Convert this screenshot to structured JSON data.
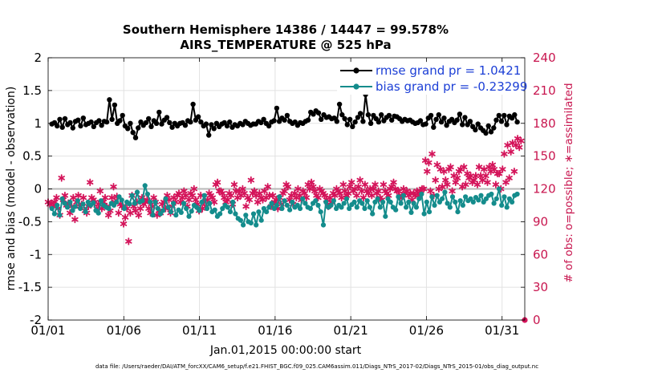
{
  "chart_data": {
    "type": "line",
    "title": "Southern Hemisphere 14386 / 14447 = 99.578%",
    "subtitle": "AIRS_TEMPERATURE @ 525 hPa",
    "xlabel": "Jan.01,2015 00:00:00 start",
    "ylabel": "rmse and bias (model - observation)",
    "ylabel_right": "# of obs: o=possible; ∗=assimilated",
    "xlim": [
      0,
      31.5
    ],
    "ylim": [
      -2,
      2
    ],
    "ylim_right": [
      0,
      240
    ],
    "x_ticks": [
      0,
      5,
      10,
      15,
      20,
      25,
      30
    ],
    "x_tick_labels": [
      "01/01",
      "01/06",
      "01/11",
      "01/16",
      "01/21",
      "01/26",
      "01/31"
    ],
    "y_ticks": [
      -2,
      -1.5,
      -1,
      -0.5,
      0,
      0.5,
      1,
      1.5,
      2
    ],
    "y_tick_labels": [
      "-2",
      "-1.5",
      "-1",
      "-0.5",
      "0",
      "0.5",
      "1",
      "1.5",
      "2"
    ],
    "y_ticks_right": [
      0,
      30,
      60,
      90,
      120,
      150,
      180,
      210,
      240
    ],
    "grid": true,
    "legend_position": "top-right",
    "colors": {
      "rmse": "#000000",
      "bias": "#148c8c",
      "obs": "#d4145a",
      "zero_line": "#b8b8b8",
      "grid": "#e2e2e2"
    },
    "series": [
      {
        "name": "rmse grand pr = 1.0421",
        "key": "rmse",
        "axis": "left",
        "values": [
          0.99,
          1.01,
          0.96,
          1.06,
          0.94,
          1.07,
          0.98,
          1.01,
          0.93,
          1.03,
          1.05,
          0.96,
          1.08,
          0.98,
          1.0,
          1.02,
          0.95,
          1.01,
          1.04,
          0.97,
          1.03,
          1.02,
          1.36,
          1.06,
          1.28,
          1.0,
          1.04,
          1.12,
          0.96,
          0.92,
          1.0,
          0.86,
          0.78,
          0.93,
          1.02,
          0.97,
          1.01,
          1.07,
          0.95,
          1.04,
          1.0,
          1.17,
          0.99,
          1.05,
          1.09,
          1.01,
          0.94,
          1.0,
          0.96,
          1.0,
          1.01,
          0.97,
          1.04,
          1.02,
          1.29,
          1.05,
          1.1,
          1.02,
          0.96,
          0.99,
          0.82,
          0.98,
          0.92,
          1.0,
          0.95,
          0.99,
          1.01,
          0.96,
          1.02,
          0.94,
          0.98,
          0.96,
          1.0,
          0.98,
          1.03,
          1.0,
          0.97,
          0.99,
          0.99,
          1.03,
          1.01,
          1.06,
          1.0,
          0.96,
          1.02,
          1.04,
          1.23,
          1.03,
          1.08,
          1.05,
          1.12,
          1.03,
          1.0,
          1.02,
          0.97,
          1.01,
          1.0,
          1.03,
          1.05,
          1.17,
          1.14,
          1.19,
          1.16,
          1.06,
          1.13,
          1.09,
          1.1,
          1.07,
          1.08,
          1.03,
          1.29,
          1.13,
          1.07,
          0.98,
          1.06,
          0.95,
          1.02,
          1.09,
          1.15,
          1.03,
          1.44,
          1.13,
          1.0,
          1.12,
          1.07,
          1.02,
          1.13,
          1.04,
          1.09,
          1.12,
          1.05,
          1.11,
          1.1,
          1.07,
          1.03,
          1.06,
          1.04,
          1.05,
          1.02,
          1.0,
          1.01,
          1.04,
          0.98,
          0.99,
          1.08,
          1.12,
          0.94,
          1.06,
          1.13,
          1.02,
          1.08,
          0.97,
          1.03,
          1.06,
          1.01,
          1.05,
          1.14,
          0.98,
          1.09,
          0.98,
          1.03,
          0.95,
          0.9,
          0.99,
          0.93,
          0.89,
          0.85,
          0.96,
          0.87,
          0.93,
          1.05,
          1.12,
          1.03,
          1.12,
          0.98,
          1.11,
          1.08,
          1.13,
          1.02
        ]
      },
      {
        "name": "bias grand pr = -0.23299",
        "key": "bias",
        "axis": "left",
        "values": [
          -0.3,
          -0.38,
          -0.25,
          -0.4,
          -0.15,
          -0.22,
          -0.28,
          -0.2,
          -0.33,
          -0.27,
          -0.18,
          -0.3,
          -0.23,
          -0.35,
          -0.2,
          -0.25,
          -0.21,
          -0.33,
          -0.37,
          -0.18,
          -0.25,
          -0.28,
          -0.3,
          -0.22,
          -0.25,
          -0.2,
          -0.12,
          -0.17,
          -0.3,
          -0.2,
          -0.23,
          -0.1,
          -0.22,
          -0.05,
          -0.2,
          -0.18,
          0.05,
          -0.08,
          -0.2,
          -0.4,
          -0.2,
          -0.3,
          -0.38,
          -0.33,
          -0.15,
          -0.28,
          -0.35,
          -0.22,
          -0.4,
          -0.32,
          -0.36,
          -0.22,
          -0.3,
          -0.42,
          -0.34,
          -0.25,
          -0.28,
          -0.33,
          -0.2,
          -0.1,
          -0.3,
          -0.22,
          -0.35,
          -0.32,
          -0.42,
          -0.38,
          -0.3,
          -0.25,
          -0.28,
          -0.35,
          -0.2,
          -0.38,
          -0.45,
          -0.48,
          -0.55,
          -0.4,
          -0.5,
          -0.52,
          -0.38,
          -0.55,
          -0.35,
          -0.48,
          -0.3,
          -0.35,
          -0.28,
          -0.22,
          -0.3,
          -0.25,
          -0.12,
          -0.3,
          -0.18,
          -0.25,
          -0.32,
          -0.2,
          -0.28,
          -0.25,
          -0.3,
          -0.15,
          -0.22,
          -0.28,
          -0.3,
          -0.22,
          -0.18,
          -0.25,
          -0.35,
          -0.55,
          -0.2,
          -0.28,
          -0.25,
          -0.18,
          -0.3,
          -0.25,
          -0.28,
          -0.22,
          -0.15,
          -0.3,
          -0.24,
          -0.2,
          -0.28,
          -0.18,
          -0.22,
          -0.3,
          -0.18,
          -0.28,
          -0.38,
          -0.2,
          -0.15,
          -0.28,
          -0.2,
          -0.42,
          -0.15,
          -0.2,
          -0.28,
          -0.32,
          -0.12,
          -0.22,
          -0.1,
          -0.28,
          -0.2,
          -0.36,
          -0.22,
          -0.28,
          -0.15,
          -0.08,
          -0.38,
          -0.2,
          -0.35,
          -0.12,
          -0.25,
          -0.1,
          -0.2,
          -0.15,
          -0.05,
          -0.22,
          -0.28,
          -0.12,
          -0.2,
          -0.35,
          -0.18,
          -0.25,
          -0.12,
          -0.18,
          -0.15,
          -0.2,
          -0.13,
          -0.17,
          -0.1,
          -0.2,
          -0.15,
          -0.1,
          -0.08,
          -0.22,
          -0.15,
          0.0,
          -0.25,
          -0.12,
          -0.28,
          -0.15,
          -0.2,
          -0.1,
          -0.08
        ]
      },
      {
        "name": "# of obs",
        "key": "obs",
        "axis": "right",
        "values": [
          108,
          106,
          107,
          104,
          108,
          112,
          102,
          96,
          130,
          110,
          114,
          105,
          107,
          98,
          104,
          112,
          92,
          108,
          114,
          104,
          106,
          112,
          100,
          98,
          104,
          126,
          112,
          110,
          108,
          102,
          106,
          118,
          102,
          108,
          112,
          104,
          96,
          100,
          112,
          122,
          108,
          113,
          98,
          106,
          104,
          88,
          94,
          102,
          72,
          98,
          114,
          104,
          100,
          108,
          96,
          102,
          112,
          106,
          108,
          110,
          102,
          98,
          104,
          112,
          108,
          96,
          100,
          98,
          106,
          108,
          102,
          114,
          110,
          98,
          104,
          112,
          108,
          114,
          116,
          108,
          112,
          118,
          114,
          104,
          110,
          116,
          114,
          120,
          110,
          106,
          100,
          114,
          102,
          108,
          104,
          110,
          116,
          114,
          112,
          108,
          124,
          126,
          118,
          118,
          116,
          112,
          108,
          110,
          116,
          114,
          106,
          124,
          118,
          112,
          118,
          114,
          120,
          116,
          104,
          112,
          110,
          128,
          116,
          118,
          114,
          108,
          116,
          112,
          110,
          118,
          112,
          122,
          114,
          104,
          114,
          108,
          110,
          102,
          112,
          106,
          116,
          118,
          124,
          122,
          110,
          114,
          106,
          116,
          112,
          120,
          114,
          110,
          118,
          116,
          112,
          124,
          120,
          126,
          122,
          118,
          114,
          112,
          120,
          118,
          116,
          114,
          110,
          104,
          112,
          108,
          116,
          114,
          120,
          118,
          116,
          112,
          124,
          118,
          114,
          116,
          122,
          126,
          118,
          120,
          114,
          122,
          128,
          118,
          112,
          124,
          118,
          116,
          120,
          114,
          120,
          124,
          116,
          118,
          112,
          110,
          124,
          118,
          116,
          114,
          120,
          122,
          126,
          120,
          118,
          118,
          112,
          114,
          120,
          116,
          118,
          114,
          116,
          110,
          116,
          114,
          118,
          114,
          118,
          120,
          120,
          146,
          136,
          144,
          118,
          152,
          114,
          128,
          142,
          120,
          138,
          122,
          136,
          128,
          124,
          138,
          140,
          118,
          132,
          126,
          130,
          136,
          138,
          122,
          140,
          124,
          134,
          130,
          132,
          126,
          128,
          132,
          124,
          140,
          132,
          128,
          138,
          132,
          126,
          140,
          136,
          142,
          138,
          124,
          134,
          134,
          120,
          138,
          152,
          126,
          160,
          130,
          154,
          162,
          136,
          160,
          166,
          158,
          164
        ]
      }
    ],
    "obs_first_day": 0.0,
    "obs_last_day": 31.25,
    "obs_outlier": {
      "x": 31.5,
      "y": 0
    }
  },
  "footer": {
    "text": "data file: /Users/raeder/DAI/ATM_forcXX/CAM6_setup/f.e21.FHIST_BGC.f09_025.CAM6assim.011/Diags_NTrS_2017-02/Diags_NTrS_2015-01/obs_diag_output.nc"
  }
}
